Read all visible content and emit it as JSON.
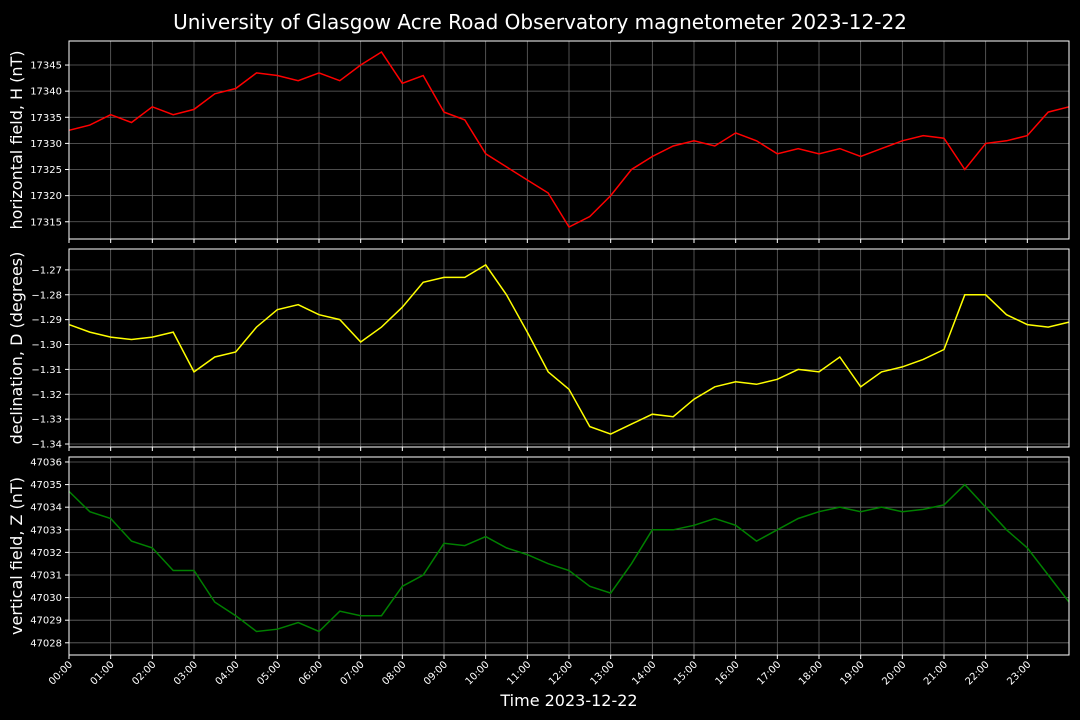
{
  "chart_data": [
    {
      "type": "line",
      "title": "University of Glasgow Acre Road Observatory magnetometer 2023-12-22",
      "ylabel": "horizontal field, H (nT)",
      "color": "#ff0000",
      "grid": true,
      "xlim": [
        0,
        24
      ],
      "xticks": [
        0,
        1,
        2,
        3,
        4,
        5,
        6,
        7,
        8,
        9,
        10,
        11,
        12,
        13,
        14,
        15,
        16,
        17,
        18,
        19,
        20,
        21,
        22,
        23
      ],
      "ylim": [
        17311.7,
        17349.6
      ],
      "yticks": [
        17315,
        17320,
        17325,
        17330,
        17335,
        17340,
        17345
      ],
      "x": [
        0,
        0.5,
        1,
        1.5,
        2,
        2.5,
        3,
        3.5,
        4,
        4.5,
        5,
        5.5,
        6,
        6.5,
        7,
        7.5,
        8,
        8.5,
        9,
        9.5,
        10,
        10.5,
        11,
        11.5,
        12,
        12.5,
        13,
        13.5,
        14,
        14.5,
        15,
        15.5,
        16,
        16.5,
        17,
        17.5,
        18,
        18.5,
        19,
        19.5,
        20,
        20.5,
        21,
        21.5,
        22,
        22.5,
        23,
        23.5,
        24
      ],
      "values": [
        17332.5,
        17333.5,
        17335.5,
        17334,
        17337,
        17335.5,
        17336.5,
        17339.5,
        17340.5,
        17343.5,
        17343,
        17342,
        17343.5,
        17342,
        17345,
        17347.5,
        17341.5,
        17343,
        17336,
        17334.5,
        17328,
        17325.5,
        17323,
        17320.5,
        17314,
        17316,
        17320,
        17325,
        17327.5,
        17329.5,
        17330.5,
        17329.5,
        17332,
        17330.5,
        17328,
        17329,
        17328,
        17329,
        17327.5,
        17329,
        17330.5,
        17331.5,
        17331,
        17325,
        17330,
        17330.5,
        17331.5,
        17336,
        17337
      ]
    },
    {
      "type": "line",
      "ylabel": "declination, D (degrees)",
      "color": "#ffff00",
      "grid": true,
      "xlim": [
        0,
        24
      ],
      "xticks": [
        0,
        1,
        2,
        3,
        4,
        5,
        6,
        7,
        8,
        9,
        10,
        11,
        12,
        13,
        14,
        15,
        16,
        17,
        18,
        19,
        20,
        21,
        22,
        23
      ],
      "ylim": [
        -1.3412,
        -1.2616
      ],
      "yticks": [
        {
          "value": -1.34,
          "label": "−1.34"
        },
        {
          "value": -1.33,
          "label": "−1.33"
        },
        {
          "value": -1.32,
          "label": "−1.32"
        },
        {
          "value": -1.31,
          "label": "−1.31"
        },
        {
          "value": -1.3,
          "label": "−1.30"
        },
        {
          "value": -1.29,
          "label": "−1.29"
        },
        {
          "value": -1.28,
          "label": "−1.28"
        },
        {
          "value": -1.27,
          "label": "−1.27"
        }
      ],
      "x": [
        0,
        0.5,
        1,
        1.5,
        2,
        2.5,
        3,
        3.5,
        4,
        4.5,
        5,
        5.5,
        6,
        6.5,
        7,
        7.5,
        8,
        8.5,
        9,
        9.5,
        10,
        10.5,
        11,
        11.5,
        12,
        12.5,
        13,
        13.5,
        14,
        14.5,
        15,
        15.5,
        16,
        16.5,
        17,
        17.5,
        18,
        18.5,
        19,
        19.5,
        20,
        20.5,
        21,
        21.5,
        22,
        22.5,
        23,
        23.5,
        24
      ],
      "values": [
        -1.292,
        -1.295,
        -1.297,
        -1.298,
        -1.297,
        -1.295,
        -1.311,
        -1.305,
        -1.303,
        -1.293,
        -1.286,
        -1.284,
        -1.288,
        -1.29,
        -1.299,
        -1.293,
        -1.285,
        -1.275,
        -1.273,
        -1.273,
        -1.268,
        -1.28,
        -1.295,
        -1.311,
        -1.318,
        -1.333,
        -1.336,
        -1.332,
        -1.328,
        -1.329,
        -1.322,
        -1.317,
        -1.315,
        -1.316,
        -1.314,
        -1.31,
        -1.311,
        -1.305,
        -1.317,
        -1.311,
        -1.309,
        -1.306,
        -1.302,
        -1.28,
        -1.28,
        -1.288,
        -1.292,
        -1.293,
        -1.291
      ]
    },
    {
      "type": "line",
      "ylabel": "vertical field, Z (nT)",
      "xlabel": "Time 2023-12-22",
      "color": "#008000",
      "grid": true,
      "xlim": [
        0,
        24
      ],
      "xticks": [
        {
          "value": 0,
          "label": "00:00"
        },
        {
          "value": 1,
          "label": "01:00"
        },
        {
          "value": 2,
          "label": "02:00"
        },
        {
          "value": 3,
          "label": "03:00"
        },
        {
          "value": 4,
          "label": "04:00"
        },
        {
          "value": 5,
          "label": "05:00"
        },
        {
          "value": 6,
          "label": "06:00"
        },
        {
          "value": 7,
          "label": "07:00"
        },
        {
          "value": 8,
          "label": "08:00"
        },
        {
          "value": 9,
          "label": "09:00"
        },
        {
          "value": 10,
          "label": "10:00"
        },
        {
          "value": 11,
          "label": "11:00"
        },
        {
          "value": 12,
          "label": "12:00"
        },
        {
          "value": 13,
          "label": "13:00"
        },
        {
          "value": 14,
          "label": "14:00"
        },
        {
          "value": 15,
          "label": "15:00"
        },
        {
          "value": 16,
          "label": "16:00"
        },
        {
          "value": 17,
          "label": "17:00"
        },
        {
          "value": 18,
          "label": "18:00"
        },
        {
          "value": 19,
          "label": "19:00"
        },
        {
          "value": 20,
          "label": "20:00"
        },
        {
          "value": 21,
          "label": "21:00"
        },
        {
          "value": 22,
          "label": "22:00"
        },
        {
          "value": 23,
          "label": "23:00"
        }
      ],
      "ylim": [
        47027.46,
        47036.22
      ],
      "yticks": [
        47028,
        47029,
        47030,
        47031,
        47032,
        47033,
        47034,
        47035,
        47036
      ],
      "x": [
        0,
        0.5,
        1,
        1.5,
        2,
        2.5,
        3,
        3.5,
        4,
        4.5,
        5,
        5.5,
        6,
        6.5,
        7,
        7.5,
        8,
        8.5,
        9,
        9.5,
        10,
        10.5,
        11,
        11.5,
        12,
        12.5,
        13,
        13.5,
        14,
        14.5,
        15,
        15.5,
        16,
        16.5,
        17,
        17.5,
        18,
        18.5,
        19,
        19.5,
        20,
        20.5,
        21,
        21.5,
        22,
        22.5,
        23,
        23.5,
        24
      ],
      "values": [
        47034.7,
        47033.8,
        47033.5,
        47032.5,
        47032.2,
        47031.2,
        47031.2,
        47029.8,
        47029.2,
        47028.5,
        47028.6,
        47028.9,
        47028.5,
        47029.4,
        47029.2,
        47029.2,
        47030.5,
        47031,
        47032.4,
        47032.3,
        47032.7,
        47032.2,
        47031.9,
        47031.5,
        47031.2,
        47030.5,
        47030.2,
        47031.5,
        47033,
        47033,
        47033.2,
        47033.5,
        47033.2,
        47032.5,
        47033,
        47033.5,
        47033.8,
        47034,
        47033.8,
        47034,
        47033.8,
        47033.9,
        47034.1,
        47035,
        47034,
        47033,
        47032.2,
        47031,
        47029.8
      ]
    }
  ]
}
